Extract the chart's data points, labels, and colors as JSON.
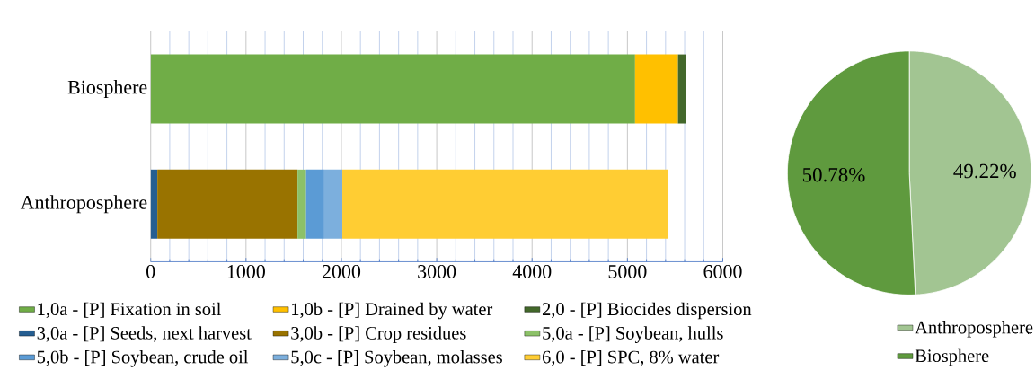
{
  "chart_data": [
    {
      "type": "bar",
      "orientation": "horizontal",
      "stacked": true,
      "categories": [
        "Biosphere",
        "Anthroposphere"
      ],
      "series": [
        {
          "name": "1,0a - [P] Fixation in soil",
          "color": "#70ad47",
          "values": [
            5080,
            null
          ]
        },
        {
          "name": "1,0b - [P] Drained by water",
          "color": "#ffc000",
          "values": [
            450,
            null
          ]
        },
        {
          "name": "2,0 - [P] Biocides dispersion",
          "color": "#43682b",
          "values": [
            80,
            null
          ]
        },
        {
          "name": "3,0a - [P] Seeds, next harvest",
          "color": "#255e91",
          "values": [
            null,
            70
          ]
        },
        {
          "name": "3,0b - [P] Crop residues",
          "color": "#997300",
          "values": [
            null,
            1470
          ]
        },
        {
          "name": "5,0a - [P] Soybean, hulls",
          "color": "#8cc168",
          "values": [
            null,
            90
          ]
        },
        {
          "name": "5,0b - [P] Soybean, crude oil",
          "color": "#5b9bd5",
          "values": [
            null,
            190
          ]
        },
        {
          "name": "5,0c - [P] Soybean, molasses",
          "color": "#7cafdd",
          "values": [
            null,
            190
          ]
        },
        {
          "name": "6,0 - [P] SPC, 8% water",
          "color": "#ffcd33",
          "values": [
            null,
            3420
          ]
        }
      ],
      "xlim": [
        0,
        6000
      ],
      "xticks": [
        0,
        {
          "value": 200,
          "label": null
        },
        {
          "value": 400,
          "label": null
        },
        {
          "value": 600,
          "label": null
        },
        {
          "value": 800,
          "label": null
        },
        1000,
        {
          "value": 1200,
          "label": null
        },
        {
          "value": 1400,
          "label": null
        },
        {
          "value": 1600,
          "label": null
        },
        {
          "value": 1800,
          "label": null
        },
        2000,
        {
          "value": 2200,
          "label": null
        },
        {
          "value": 2400,
          "label": null
        },
        {
          "value": 2600,
          "label": null
        },
        {
          "value": 2800,
          "label": null
        },
        3000,
        {
          "value": 3200,
          "label": null
        },
        {
          "value": 3400,
          "label": null
        },
        {
          "value": 3600,
          "label": null
        },
        {
          "value": 3800,
          "label": null
        },
        4000,
        {
          "value": 4200,
          "label": null
        },
        {
          "value": 4400,
          "label": null
        },
        {
          "value": 4600,
          "label": null
        },
        {
          "value": 4800,
          "label": null
        },
        5000,
        {
          "value": 5200,
          "label": null
        },
        {
          "value": 5400,
          "label": null
        },
        {
          "value": 5600,
          "label": null
        },
        {
          "value": 5800,
          "label": null
        },
        6000
      ],
      "grid": "x",
      "legend": "bottom"
    },
    {
      "type": "pie",
      "categories": [
        "Anthroposphere",
        "Biosphere"
      ],
      "values": [
        49.22,
        50.78
      ],
      "colors": [
        "#a2c592",
        "#5f9a3e"
      ],
      "value_labels": [
        "49.22%",
        "50.78%"
      ],
      "legend": "bottom"
    }
  ]
}
